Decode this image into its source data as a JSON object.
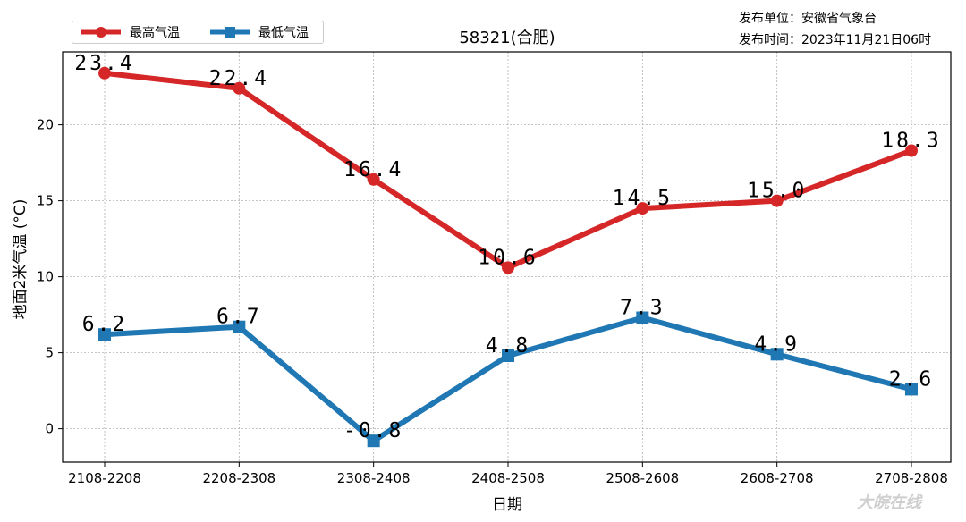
{
  "chart_data": {
    "type": "line",
    "title": "58321(合肥)",
    "xlabel": "日期",
    "ylabel": "地面2米气温 (°C)",
    "categories": [
      "2108-2208",
      "2208-2308",
      "2308-2408",
      "2408-2508",
      "2508-2608",
      "2608-2708",
      "2708-2808"
    ],
    "ylim": [
      -2.2,
      24.8
    ],
    "yticks": [
      0,
      5,
      10,
      15,
      20
    ],
    "grid": true,
    "legend_position": "top-left",
    "series": [
      {
        "name": "最高气温",
        "color": "#d62728",
        "marker": "circle",
        "values": [
          23.4,
          22.4,
          16.4,
          10.6,
          14.5,
          15.0,
          18.3
        ],
        "labels": [
          "23.4",
          "22.4",
          "16.4",
          "10.6",
          "14.5",
          "15.0",
          "18.3"
        ]
      },
      {
        "name": "最低气温",
        "color": "#1f77b4",
        "marker": "square",
        "values": [
          6.2,
          6.7,
          -0.8,
          4.8,
          7.3,
          4.9,
          2.6
        ],
        "labels": [
          "6.2",
          "6.7",
          "-0.8",
          "4.8",
          "7.3",
          "4.9",
          "2.6"
        ]
      }
    ]
  },
  "info": {
    "line1": "发布单位：安徽省气象台",
    "line2": "发布时间：2023年11月21日06时"
  },
  "watermark": "大皖在线"
}
